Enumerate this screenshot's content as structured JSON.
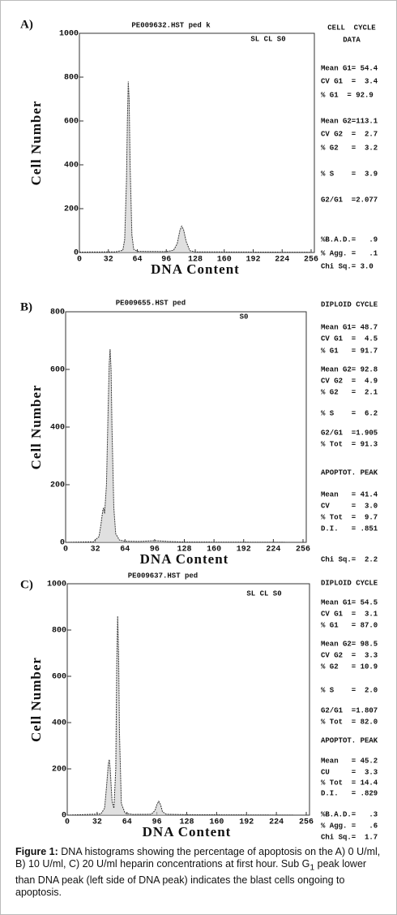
{
  "chart_data": [
    {
      "type": "line",
      "panel": "A)",
      "title": "PE009632.HST ped k",
      "tag": "SL CL S0",
      "x_label": "DNA Content",
      "y_label": "Cell Number",
      "xlim": [
        0,
        256
      ],
      "ylim": [
        0,
        1000
      ],
      "xticks": [
        0,
        32,
        64,
        96,
        128,
        160,
        192,
        224,
        256
      ],
      "yticks": [
        0,
        200,
        400,
        600,
        800,
        1000
      ],
      "series": [
        {
          "color": "#333333",
          "x": [
            0,
            40,
            48,
            50,
            52,
            53,
            54,
            55,
            56,
            58,
            60,
            64,
            96,
            104,
            108,
            111,
            113,
            115,
            118,
            122,
            128,
            256
          ],
          "values": [
            2,
            3,
            10,
            60,
            330,
            600,
            780,
            700,
            400,
            80,
            15,
            5,
            4,
            10,
            40,
            100,
            120,
            105,
            50,
            8,
            3,
            1
          ]
        }
      ],
      "stats": [
        "CELL  CYCLE",
        "DATA",
        "Mean G1= 54.4",
        "CV G1  =  3.4",
        "% G1  = 92.9",
        "Mean G2=113.1",
        "CV G2  =  2.7",
        "% G2   =  3.2",
        "% S    =  3.9",
        "G2/G1  =2.077",
        "%B.A.D.=   .9",
        "% Agg. =   .1",
        "Chi Sq.= 3.0"
      ]
    },
    {
      "type": "line",
      "panel": "B)",
      "title": "PE009655.HST ped",
      "tag": "S0",
      "x_label": "DNA Content",
      "y_label": "Cell Number",
      "xlim": [
        0,
        256
      ],
      "ylim": [
        0,
        800
      ],
      "xticks": [
        0,
        32,
        64,
        96,
        128,
        160,
        192,
        224,
        256
      ],
      "yticks": [
        0,
        200,
        400,
        600,
        800
      ],
      "series": [
        {
          "color": "#333333",
          "x": [
            0,
            30,
            36,
            38,
            40,
            41,
            42,
            44,
            46,
            47,
            48,
            49,
            50,
            52,
            54,
            58,
            64,
            80,
            92,
            96,
            110,
            128,
            256
          ],
          "values": [
            0,
            2,
            20,
            60,
            110,
            120,
            100,
            200,
            480,
            620,
            670,
            600,
            400,
            120,
            30,
            8,
            4,
            3,
            5,
            6,
            3,
            1,
            0
          ]
        }
      ],
      "stats": [
        "DIPLOID CYCLE",
        "Mean G1= 48.7",
        "CV G1  =  4.5",
        "% G1   = 91.7",
        "Mean G2= 92.8",
        "CV G2  =  4.9",
        "% G2   =  2.1",
        "% S    =  6.2",
        "G2/G1  =1.905",
        "% Tot  = 91.3",
        "APOPTOT. PEAK",
        "Mean   = 41.4",
        "CV     =  3.0",
        "% Tot  =  9.7",
        "D.I.   = .851",
        "Chi Sq.=  2.2"
      ]
    },
    {
      "type": "line",
      "panel": "C)",
      "title": "PE009637.HST ped",
      "tag": "SL CL S0",
      "x_label": "DNA Content",
      "y_label": "Cell Number",
      "xlim": [
        0,
        256
      ],
      "ylim": [
        0,
        1000
      ],
      "xticks": [
        0,
        32,
        64,
        96,
        128,
        160,
        192,
        224,
        256
      ],
      "yticks": [
        0,
        200,
        400,
        600,
        800,
        1000
      ],
      "series": [
        {
          "color": "#333333",
          "x": [
            0,
            36,
            40,
            42,
            44,
            45,
            46,
            48,
            50,
            52,
            53,
            54,
            55,
            56,
            58,
            62,
            70,
            90,
            94,
            96,
            98,
            100,
            102,
            106,
            128,
            256
          ],
          "values": [
            0,
            5,
            30,
            120,
            220,
            240,
            200,
            60,
            30,
            200,
            650,
            860,
            700,
            350,
            50,
            8,
            3,
            4,
            20,
            45,
            60,
            45,
            15,
            4,
            2,
            0
          ]
        }
      ],
      "stats": [
        "DIPLOID CYCLE",
        "Mean G1= 54.5",
        "CV G1  =  3.1",
        "% G1   = 87.0",
        "Mean G2= 98.5",
        "CV G2  =  3.3",
        "% G2   = 10.9",
        "% S    =  2.0",
        "G2/G1  =1.807",
        "% Tot  = 82.0",
        "APOPTOT. PEAK",
        "Mean   = 45.2",
        "CU     =  3.3",
        "% Tot  = 14.4",
        "D.I.   = .829",
        "%B.A.D.=   .3",
        "% Agg. =   .6",
        "Chi Sq.=  1.7"
      ]
    }
  ],
  "caption": {
    "label": "Figure 1:",
    "text_before_sub": "DNA histograms showing the percentage of apoptosis on the A) 0 U/ml, B) 10 U/ml, C) 20 U/ml heparin concentrations at first hour. Sub G",
    "subscript": "1",
    "text_after_sub": " peak lower than DNA peak (left side of DNA peak) indicates the blast cells ongoing to apoptosis."
  }
}
